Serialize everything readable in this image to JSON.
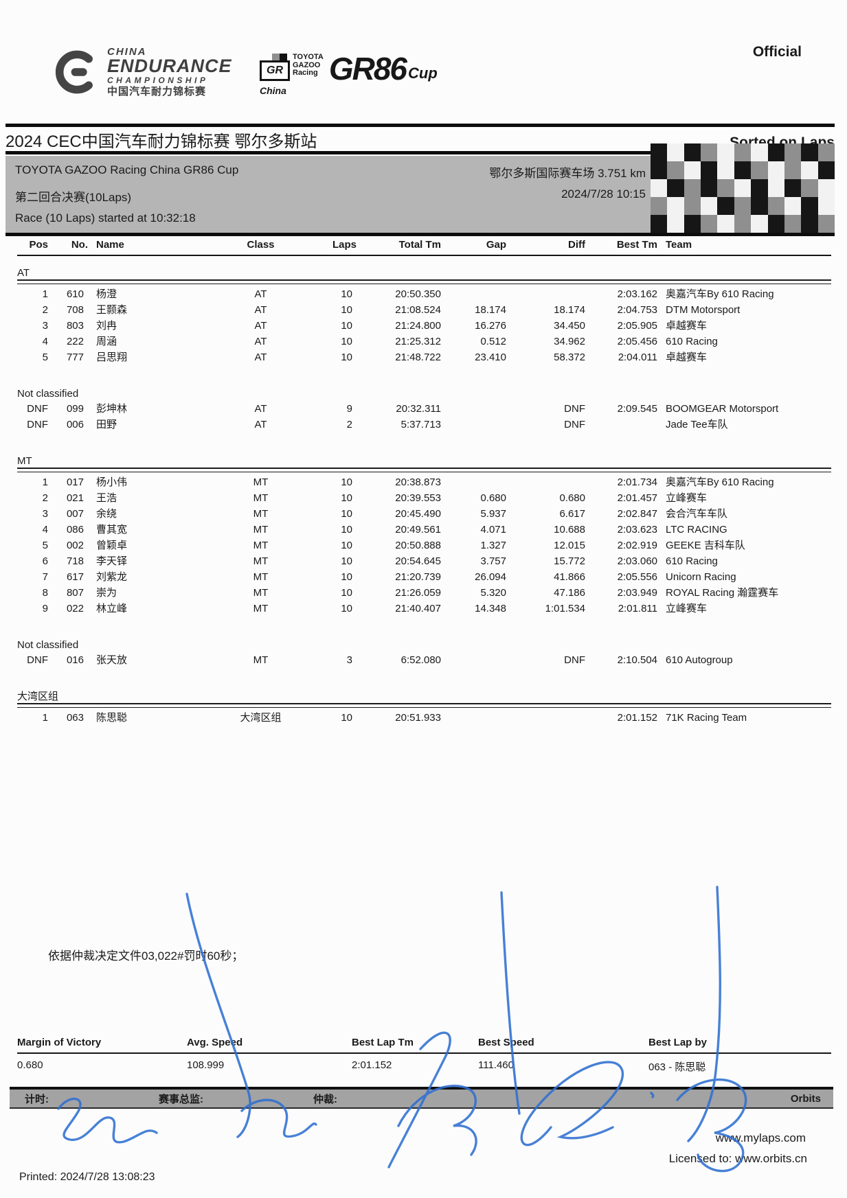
{
  "header": {
    "official_label": "Official",
    "cec_logo": {
      "line1": "CHINA",
      "line2": "ENDURANCE",
      "line3": "CHAMPIONSHIP",
      "line4": "中国汽车耐力锦标赛"
    },
    "tgr_logo": {
      "gr": "GR",
      "toyota": "TOYOTA",
      "gazoo": "GAZOO",
      "racing": "Racing",
      "china": "China",
      "gr86": "GR86",
      "cup": "Cup"
    }
  },
  "title": {
    "left": "2024 CEC中国汽车耐力锦标赛 鄂尔多斯站",
    "right": "Sorted on Laps"
  },
  "info": {
    "series": "TOYOTA GAZOO Racing China GR86 Cup",
    "track": "鄂尔多斯国际赛车场 3.751 km",
    "session": "第二回合决赛(10Laps)",
    "datetime": "2024/7/28 10:15",
    "started": "Race (10 Laps) started at 10:32:18"
  },
  "table": {
    "headers": [
      "Pos",
      "No.",
      "Name",
      "Class",
      "Laps",
      "Total Tm",
      "Gap",
      "Diff",
      "Best Tm",
      "Team"
    ],
    "sections": [
      {
        "label": "AT",
        "rule": true,
        "rows": [
          [
            "1",
            "610",
            "杨澄",
            "AT",
            "10",
            "20:50.350",
            "",
            "",
            "2:03.162",
            "奥嘉汽车By 610 Racing"
          ],
          [
            "2",
            "708",
            "王颢森",
            "AT",
            "10",
            "21:08.524",
            "18.174",
            "18.174",
            "2:04.753",
            "DTM Motorsport"
          ],
          [
            "3",
            "803",
            "刘冉",
            "AT",
            "10",
            "21:24.800",
            "16.276",
            "34.450",
            "2:05.905",
            "卓越赛车"
          ],
          [
            "4",
            "222",
            "周涵",
            "AT",
            "10",
            "21:25.312",
            "0.512",
            "34.962",
            "2:05.456",
            "610 Racing"
          ],
          [
            "5",
            "777",
            "吕思翔",
            "AT",
            "10",
            "21:48.722",
            "23.410",
            "58.372",
            "2:04.011",
            "卓越赛车"
          ]
        ]
      },
      {
        "label": "Not classified",
        "rule": false,
        "rows": [
          [
            "DNF",
            "099",
            "彭坤林",
            "AT",
            "9",
            "20:32.311",
            "",
            "DNF",
            "2:09.545",
            "BOOMGEAR Motorsport"
          ],
          [
            "DNF",
            "006",
            "田野",
            "AT",
            "2",
            "5:37.713",
            "",
            "DNF",
            "",
            "Jade Tee车队"
          ]
        ]
      },
      {
        "label": "MT",
        "rule": true,
        "rows": [
          [
            "1",
            "017",
            "杨小伟",
            "MT",
            "10",
            "20:38.873",
            "",
            "",
            "2:01.734",
            "奥嘉汽车By 610 Racing"
          ],
          [
            "2",
            "021",
            "王浩",
            "MT",
            "10",
            "20:39.553",
            "0.680",
            "0.680",
            "2:01.457",
            "立峰赛车"
          ],
          [
            "3",
            "007",
            "余绕",
            "MT",
            "10",
            "20:45.490",
            "5.937",
            "6.617",
            "2:02.847",
            "会合汽车车队"
          ],
          [
            "4",
            "086",
            "曹其宽",
            "MT",
            "10",
            "20:49.561",
            "4.071",
            "10.688",
            "2:03.623",
            "LTC RACING"
          ],
          [
            "5",
            "002",
            "曾颖卓",
            "MT",
            "10",
            "20:50.888",
            "1.327",
            "12.015",
            "2:02.919",
            "GEEKE 吉科车队"
          ],
          [
            "6",
            "718",
            "李天铎",
            "MT",
            "10",
            "20:54.645",
            "3.757",
            "15.772",
            "2:03.060",
            "610 Racing"
          ],
          [
            "7",
            "617",
            "刘紫龙",
            "MT",
            "10",
            "21:20.739",
            "26.094",
            "41.866",
            "2:05.556",
            "Unicorn Racing"
          ],
          [
            "8",
            "807",
            "崇为",
            "MT",
            "10",
            "21:26.059",
            "5.320",
            "47.186",
            "2:03.949",
            "ROYAL Racing 瀚霆赛车"
          ],
          [
            "9",
            "022",
            "林立峰",
            "MT",
            "10",
            "21:40.407",
            "14.348",
            "1:01.534",
            "2:01.811",
            "立峰赛车"
          ]
        ]
      },
      {
        "label": "Not classified",
        "rule": false,
        "rows": [
          [
            "DNF",
            "016",
            "张天放",
            "MT",
            "3",
            "6:52.080",
            "",
            "DNF",
            "2:10.504",
            "610 Autogroup"
          ]
        ]
      },
      {
        "label": "大湾区组",
        "rule": true,
        "rows": [
          [
            "1",
            "063",
            "陈思聪",
            "大湾区组",
            "10",
            "20:51.933",
            "",
            "",
            "2:01.152",
            "71K Racing Team"
          ]
        ]
      }
    ]
  },
  "note": "依据仲裁决定文件03,022#罚时60秒；",
  "stats": {
    "headers": [
      "Margin of Victory",
      "Avg. Speed",
      "Best Lap Tm",
      "Best Speed",
      "Best Lap by"
    ],
    "values": [
      "0.680",
      "108.999",
      "2:01.152",
      "111.460",
      "063 - 陈思聪"
    ]
  },
  "footer": {
    "timing_label": "计时:",
    "director_label": "赛事总监:",
    "arbiter_label": "仲裁:",
    "orbits": "Orbits",
    "mylaps": "www.mylaps.com",
    "licensed": "Licensed to:  www.orbits.cn",
    "printed": "Printed: 2024/7/28 13:08:23"
  }
}
